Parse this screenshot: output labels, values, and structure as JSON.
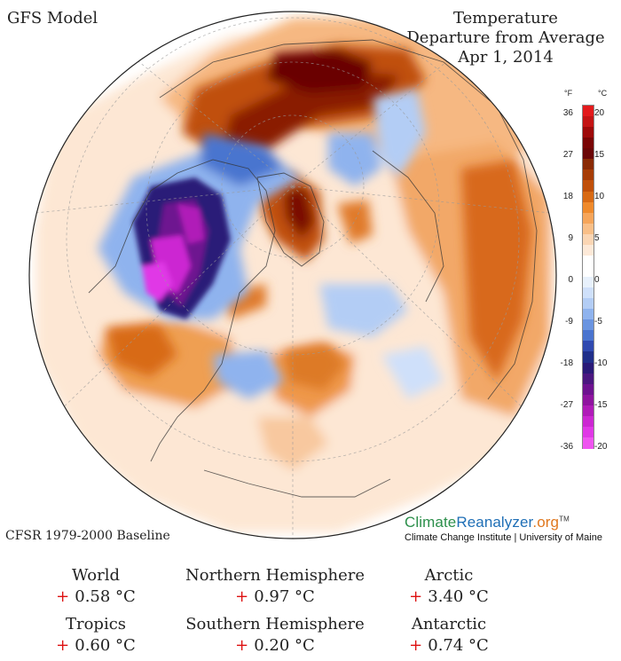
{
  "header": {
    "model": "GFS Model",
    "title_lines": [
      "Temperature",
      "Departure from Average",
      "Apr 1, 2014"
    ]
  },
  "colors": {
    "very_warm": "#6b0606",
    "warm": "#c0500a",
    "mild_warm": "#f0a25a",
    "slight_warm": "#fbd6b4",
    "neutral": "#ffffff",
    "slight_cool": "#d6e6fb",
    "cool": "#7fa8e6",
    "cold": "#24308a",
    "very_cold": "#b51ec9",
    "accent_plus": "#dd1111"
  },
  "scale": {
    "f_unit": "°F",
    "c_unit": "°C",
    "f_ticks": [
      "36",
      "27",
      "18",
      "9",
      "0",
      "-9",
      "-18",
      "-27",
      "-36"
    ],
    "c_ticks": [
      "20",
      "15",
      "10",
      "5",
      "0",
      "-5",
      "-10",
      "-15",
      "-20"
    ],
    "swatches": [
      "#e31a1c",
      "#c41414",
      "#9e0a0a",
      "#7a0505",
      "#6b0606",
      "#8a2a04",
      "#a73c06",
      "#c0500a",
      "#d86a14",
      "#ef8a2c",
      "#f6a55a",
      "#f9bf88",
      "#fbd6b4",
      "#fde9d8",
      "#ffffff",
      "#ffffff",
      "#e8f1fc",
      "#cfe0fa",
      "#b3cdf5",
      "#8fb3ee",
      "#6a94e0",
      "#4a74cf",
      "#3049b0",
      "#202f8a",
      "#2a1a78",
      "#4b1780",
      "#6e1290",
      "#8f149f",
      "#b01bb8",
      "#cc27d2",
      "#e038e6",
      "#ef55f0"
    ]
  },
  "baseline_note": "CFSR 1979-2000 Baseline",
  "brand": {
    "part1": "Climate",
    "part2": "Reanalyzer",
    "part3": ".org",
    "tm": "TM",
    "institution": "Climate Change Institute | University of Maine"
  },
  "stats": [
    {
      "label": "World",
      "sign": "+",
      "value": "0.58 °C"
    },
    {
      "label": "Northern Hemisphere",
      "sign": "+",
      "value": "0.97 °C"
    },
    {
      "label": "Arctic",
      "sign": "+",
      "value": "3.40 °C"
    },
    {
      "label": "Tropics",
      "sign": "+",
      "value": "0.60 °C"
    },
    {
      "label": "Southern Hemisphere",
      "sign": "+",
      "value": "0.20 °C"
    },
    {
      "label": "Antarctic",
      "sign": "+",
      "value": "0.74 °C"
    }
  ]
}
